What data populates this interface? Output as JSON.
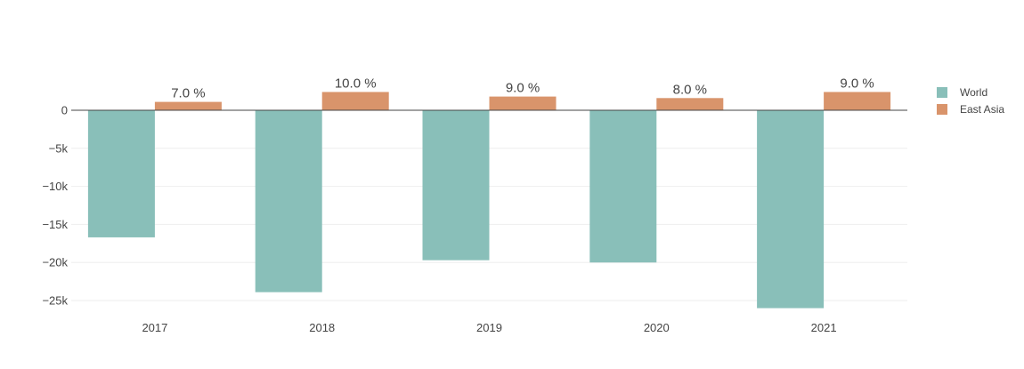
{
  "chart_data": {
    "type": "bar",
    "categories": [
      "2017",
      "2018",
      "2019",
      "2020",
      "2021"
    ],
    "series": [
      {
        "name": "World",
        "color": "#89bfb9",
        "values": [
          -16700,
          -23900,
          -19700,
          -20000,
          -26000
        ],
        "labels": [
          "",
          "",
          "",
          "",
          ""
        ]
      },
      {
        "name": "East Asia",
        "color": "#d9946b",
        "values": [
          1100,
          2400,
          1800,
          1600,
          2400
        ],
        "labels": [
          "7.0  %",
          "10.0  %",
          "9.0  %",
          "8.0  %",
          "9.0  %"
        ]
      }
    ],
    "yticks": [
      0,
      -5000,
      -10000,
      -15000,
      -20000,
      -25000
    ],
    "ytick_labels": [
      "0",
      "−5k",
      "−10k",
      "−15k",
      "−20k",
      "−25k"
    ],
    "ylim": [
      -27000,
      4000
    ],
    "grid": true,
    "legend_position": "right",
    "colors": {
      "grid": "#eeeeee",
      "zero_line": "#444444",
      "text": "#444444"
    }
  }
}
